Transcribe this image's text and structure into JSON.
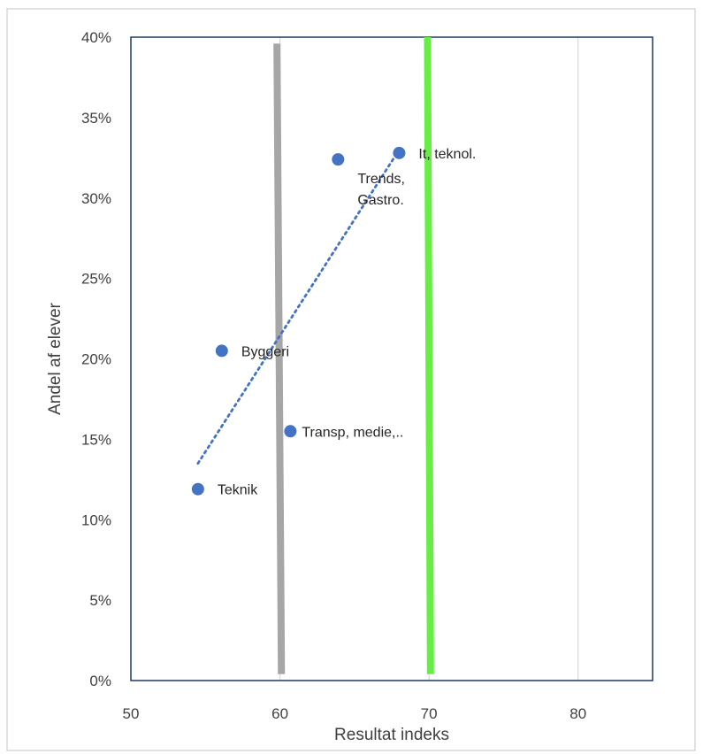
{
  "chart_data": {
    "type": "scatter",
    "title": "",
    "xlabel": "Resultat indeks",
    "ylabel": "Andel af elever",
    "xlim": [
      50,
      85
    ],
    "ylim": [
      0,
      40
    ],
    "x_ticks": [
      50,
      60,
      70,
      80
    ],
    "y_ticks": [
      0,
      5,
      10,
      15,
      20,
      25,
      30,
      35,
      40
    ],
    "y_tick_suffix": "%",
    "grid": "vertical",
    "series": [
      {
        "color": "#4472c4",
        "points": [
          {
            "label": "Teknik",
            "x": 54.5,
            "y": 11.9
          },
          {
            "label": "Byggeri",
            "x": 56.1,
            "y": 20.5
          },
          {
            "label": "Transp, medie,..",
            "x": 60.7,
            "y": 15.5
          },
          {
            "label": "Trends,\nGastro.",
            "x": 63.9,
            "y": 32.4
          },
          {
            "label": "It, teknol.",
            "x": 68.0,
            "y": 32.8
          }
        ]
      }
    ],
    "trendline": {
      "style": "dotted",
      "color": "#4472c4",
      "from": {
        "x": 54.5,
        "y": 13.5
      },
      "to": {
        "x": 68.0,
        "y": 33.0
      }
    },
    "reference_lines": [
      {
        "color": "#a6a6a6",
        "from": {
          "x": 59.8,
          "y": 39.6
        },
        "to": {
          "x": 60.1,
          "y": 0.4
        }
      },
      {
        "color": "#66ee44",
        "from": {
          "x": 69.9,
          "y": 40.0
        },
        "to": {
          "x": 70.1,
          "y": 0.4
        }
      }
    ],
    "colors": {
      "plot_border": "#1f3864",
      "grid": "#d9d9d9",
      "outer_border": "#d9d9d9"
    }
  }
}
